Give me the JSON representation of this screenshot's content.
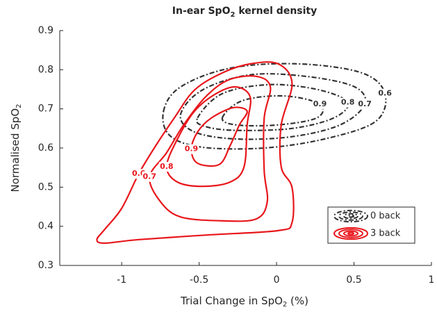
{
  "chart_data": {
    "type": "contour",
    "title": {
      "text": "In-ear SpO",
      "sub": "2",
      "after": " kernel density"
    },
    "xlabel": {
      "text": "Trial Change in SpO",
      "sub": "2",
      "after": " (%)"
    },
    "ylabel": {
      "text": "Normalised SpO",
      "sub": "2"
    },
    "xlim": [
      -1.4,
      1
    ],
    "xticks": [
      -1,
      -0.5,
      0,
      0.5,
      1
    ],
    "ylim": [
      0.3,
      0.9
    ],
    "yticks": [
      0.3,
      0.4,
      0.5,
      0.6,
      0.7,
      0.8,
      0.9
    ],
    "legend": "lower right",
    "series": [
      {
        "name": "0 back",
        "color": "#333333",
        "dash": "dashdot",
        "contours": [
          {
            "level": 0.6,
            "x": [
              -0.73,
              -0.62,
              -0.3,
              0.14,
              0.55,
              0.7,
              0.64,
              0.32,
              -0.08,
              -0.48,
              -0.69
            ],
            "y": [
              0.694,
              0.756,
              0.804,
              0.815,
              0.792,
              0.739,
              0.668,
              0.624,
              0.6,
              0.602,
              0.632
            ]
          },
          {
            "level": 0.7,
            "x": [
              -0.62,
              -0.48,
              -0.17,
              0.19,
              0.5,
              0.57,
              0.41,
              0.1,
              -0.26,
              -0.53
            ],
            "y": [
              0.685,
              0.748,
              0.787,
              0.783,
              0.757,
              0.712,
              0.659,
              0.629,
              0.623,
              0.641
            ]
          },
          {
            "level": 0.8,
            "x": [
              -0.51,
              -0.35,
              -0.04,
              0.28,
              0.46,
              0.37,
              0.1,
              -0.26,
              -0.46
            ],
            "y": [
              0.677,
              0.739,
              0.762,
              0.748,
              0.716,
              0.677,
              0.65,
              0.645,
              0.655
            ]
          },
          {
            "level": 0.9,
            "x": [
              -0.35,
              -0.22,
              0.05,
              0.28,
              0.26,
              0.01,
              -0.26
            ],
            "y": [
              0.677,
              0.721,
              0.733,
              0.712,
              0.677,
              0.659,
              0.659
            ]
          }
        ]
      },
      {
        "name": "3 back",
        "color": "#e8161b",
        "dash": "solid",
        "contours": [
          {
            "level": 0.6,
            "x": [
              -1.16,
              -1.11,
              -0.89,
              -0.44,
              0.01,
              0.1,
              0.1,
              0.03,
              0.03,
              0.1,
              0.01,
              -0.17,
              -0.35,
              -0.53,
              -0.66,
              -0.78,
              -0.89,
              -1.0,
              -1.11
            ],
            "y": [
              0.366,
              0.357,
              0.366,
              0.378,
              0.389,
              0.41,
              0.499,
              0.552,
              0.659,
              0.765,
              0.815,
              0.815,
              0.792,
              0.748,
              0.677,
              0.606,
              0.534,
              0.446,
              0.392
            ]
          },
          {
            "level": 0.7,
            "x": [
              -0.82,
              -0.75,
              -0.62,
              -0.35,
              -0.13,
              -0.06,
              -0.08,
              -0.08,
              -0.04,
              -0.13,
              -0.31,
              -0.46,
              -0.6,
              -0.71
            ],
            "y": [
              0.526,
              0.463,
              0.424,
              0.414,
              0.419,
              0.463,
              0.543,
              0.676,
              0.756,
              0.783,
              0.774,
              0.73,
              0.659,
              0.588
            ]
          },
          {
            "level": 0.8,
            "x": [
              -0.71,
              -0.64,
              -0.48,
              -0.3,
              -0.21,
              -0.19,
              -0.17,
              -0.26,
              -0.39,
              -0.53,
              -0.64
            ],
            "y": [
              0.552,
              0.513,
              0.502,
              0.513,
              0.552,
              0.659,
              0.73,
              0.756,
              0.739,
              0.694,
              0.623
            ]
          },
          {
            "level": 0.9,
            "x": [
              -0.55,
              -0.51,
              -0.37,
              -0.3,
              -0.24,
              -0.19,
              -0.28,
              -0.42,
              -0.51
            ],
            "y": [
              0.597,
              0.561,
              0.558,
              0.606,
              0.659,
              0.694,
              0.703,
              0.677,
              0.641
            ]
          }
        ]
      }
    ]
  }
}
